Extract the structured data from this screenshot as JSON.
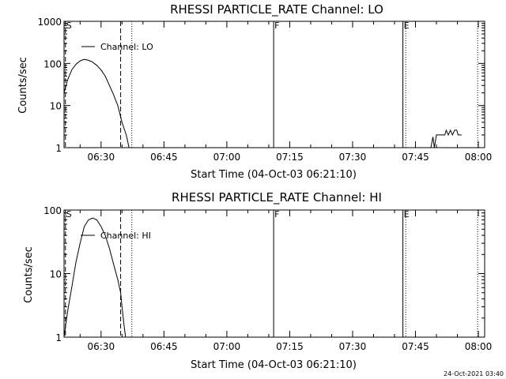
{
  "footer": {
    "timestamp": "24-Oct-2021 03:40"
  },
  "chart_data": [
    {
      "type": "line",
      "title": "RHESSI PARTICLE_RATE Channel: LO",
      "xlabel": "Start Time (04-Oct-03 06:21:10)",
      "ylabel": "Counts/sec",
      "y_scale": "log",
      "xlim": [
        "06:21:10",
        "08:01:30"
      ],
      "ylim": [
        1,
        1000
      ],
      "x_tick_labels": [
        "06:30",
        "06:45",
        "07:00",
        "07:15",
        "07:30",
        "07:45",
        "08:00"
      ],
      "y_tick_labels": [
        "1",
        "10",
        "100",
        "1000"
      ],
      "legend": {
        "label": "Channel: LO",
        "position": "top-left"
      },
      "markers": [
        {
          "label": "S",
          "time": "06:21:30",
          "style": "dashed"
        },
        {
          "label": "",
          "time": "06:34:40",
          "style": "dashed"
        },
        {
          "label": "",
          "time": "06:37:20",
          "style": "dotted"
        },
        {
          "label": "F",
          "time": "07:11:10",
          "style": "solid"
        },
        {
          "label": "E",
          "time": "07:42:00",
          "style": "solid"
        },
        {
          "label": "",
          "time": "07:42:40",
          "style": "dotted"
        },
        {
          "label": "",
          "time": "07:59:50",
          "style": "dotted"
        }
      ],
      "series": [
        {
          "name": "Channel: LO",
          "x": [
            "06:21:10",
            "06:22:00",
            "06:23:00",
            "06:24:00",
            "06:25:00",
            "06:26:00",
            "06:26:50",
            "06:27:50",
            "06:29:00",
            "06:30:00",
            "06:31:00",
            "06:32:00",
            "06:33:00",
            "06:34:00",
            "06:35:00",
            "06:36:00",
            "06:36:40"
          ],
          "y": [
            20,
            40,
            70,
            95,
            115,
            125,
            120,
            110,
            90,
            70,
            50,
            30,
            18,
            10,
            4,
            2,
            1
          ]
        },
        {
          "name": "Channel: LO",
          "x": [
            "07:48:40",
            "07:49:10",
            "07:49:30",
            "07:50:00",
            "07:51:00",
            "07:52:00",
            "07:52:20",
            "07:52:50",
            "07:53:20",
            "07:53:50",
            "07:54:20",
            "07:54:50",
            "07:55:10",
            "07:56:00"
          ],
          "y": [
            1,
            1.8,
            1,
            2,
            2,
            2,
            2.6,
            2,
            2.6,
            2,
            2.6,
            2.6,
            2,
            2
          ]
        }
      ]
    },
    {
      "type": "line",
      "title": "RHESSI PARTICLE_RATE Channel: HI",
      "xlabel": "Start Time (04-Oct-03 06:21:10)",
      "ylabel": "Counts/sec",
      "y_scale": "log",
      "xlim": [
        "06:21:10",
        "08:01:30"
      ],
      "ylim": [
        1,
        100
      ],
      "x_tick_labels": [
        "06:30",
        "06:45",
        "07:00",
        "07:15",
        "07:30",
        "07:45",
        "08:00"
      ],
      "y_tick_labels": [
        "1",
        "10",
        "100"
      ],
      "legend": {
        "label": "Channel: HI",
        "position": "top-left"
      },
      "markers": [
        {
          "label": "S",
          "time": "06:21:30",
          "style": "dashed"
        },
        {
          "label": "",
          "time": "06:34:40",
          "style": "dashed"
        },
        {
          "label": "",
          "time": "06:37:20",
          "style": "dotted"
        },
        {
          "label": "F",
          "time": "07:11:10",
          "style": "solid"
        },
        {
          "label": "E",
          "time": "07:42:00",
          "style": "solid"
        },
        {
          "label": "",
          "time": "07:42:40",
          "style": "dotted"
        },
        {
          "label": "",
          "time": "07:59:50",
          "style": "dotted"
        }
      ],
      "series": [
        {
          "name": "Channel: HI",
          "x": [
            "06:21:10",
            "06:22:00",
            "06:23:00",
            "06:24:00",
            "06:25:00",
            "06:26:00",
            "06:27:00",
            "06:28:00",
            "06:29:00",
            "06:30:00",
            "06:31:00",
            "06:32:00",
            "06:33:00",
            "06:34:00",
            "06:34:40",
            "06:35:00",
            "06:35:30",
            "06:35:50"
          ],
          "y": [
            1,
            2.5,
            6,
            15,
            30,
            55,
            70,
            75,
            70,
            55,
            40,
            25,
            14,
            8,
            5,
            3,
            1.5,
            1
          ]
        }
      ]
    }
  ]
}
